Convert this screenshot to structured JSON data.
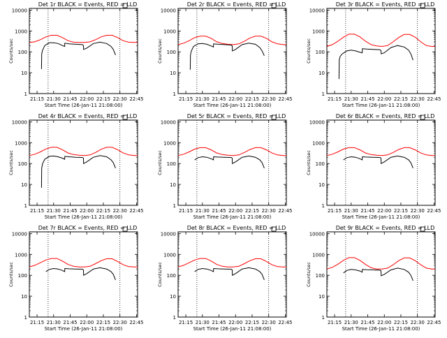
{
  "figure": {
    "ylabel": "Counts/sec",
    "xlabel": "Start Time (26-Jan-11 21:08:00)",
    "x_ticks": [
      "21:15",
      "21:30",
      "21:45",
      "22:00",
      "22:15",
      "22:30",
      "22:45"
    ],
    "y_ticks": [
      "1",
      "10",
      "100",
      "1000",
      "10000"
    ],
    "colors": {
      "events": "#000000",
      "lld": "#ff0000",
      "axes": "#000000"
    }
  },
  "chart_data": [
    {
      "type": "line",
      "title": "Det 1r BLACK = Events, RED = LLD",
      "y_scale": "log",
      "xlim": [
        "21:08",
        "22:46"
      ],
      "ylim": [
        1,
        12000
      ],
      "x_unit": "minutes from 21:08",
      "dotted_x": [
        "21:25",
        "22:30"
      ],
      "series": [
        {
          "role": "LLD",
          "color": "#ff0000",
          "x": [
            0,
            5,
            10,
            15,
            20,
            25,
            30,
            35,
            40,
            45,
            50,
            55,
            60,
            65,
            70,
            75,
            80,
            85,
            90,
            95,
            98
          ],
          "y": [
            280,
            300,
            380,
            520,
            620,
            620,
            480,
            340,
            290,
            280,
            280,
            300,
            380,
            520,
            620,
            620,
            480,
            340,
            290,
            280,
            280
          ]
        },
        {
          "role": "Events",
          "color": "#000000",
          "x": [
            11,
            11.2,
            12,
            14,
            18,
            22,
            26,
            30,
            32,
            32.1,
            36,
            42,
            48,
            49,
            49.1,
            52,
            58,
            64,
            70,
            74,
            76,
            78
          ],
          "y": [
            15,
            80,
            120,
            200,
            270,
            270,
            250,
            200,
            180,
            260,
            240,
            230,
            220,
            200,
            130,
            150,
            250,
            290,
            250,
            180,
            130,
            70
          ]
        }
      ]
    },
    {
      "type": "line",
      "title": "Det 2r BLACK = Events, RED = LLD",
      "y_scale": "log",
      "xlim": [
        "21:08",
        "22:46"
      ],
      "ylim": [
        1,
        12000
      ],
      "x_unit": "minutes from 21:08",
      "dotted_x": [
        "21:25",
        "22:30"
      ],
      "series": [
        {
          "role": "LLD",
          "color": "#ff0000",
          "x": [
            0,
            5,
            10,
            15,
            20,
            25,
            30,
            35,
            40,
            45,
            50,
            55,
            60,
            65,
            70,
            75,
            80,
            85,
            90,
            95,
            98
          ],
          "y": [
            220,
            260,
            340,
            480,
            560,
            560,
            440,
            300,
            250,
            230,
            220,
            240,
            320,
            460,
            560,
            560,
            440,
            300,
            240,
            220,
            220
          ]
        },
        {
          "role": "Events",
          "color": "#000000",
          "x": [
            11,
            11.2,
            12,
            14,
            18,
            22,
            26,
            30,
            32,
            32.1,
            36,
            42,
            48,
            49,
            49.1,
            52,
            58,
            64,
            70,
            74,
            76,
            78
          ],
          "y": [
            14,
            70,
            110,
            180,
            240,
            250,
            230,
            190,
            170,
            240,
            230,
            220,
            210,
            190,
            110,
            130,
            220,
            260,
            230,
            160,
            110,
            65
          ]
        }
      ]
    },
    {
      "type": "line",
      "title": "Det 3r BLACK = Events, RED = LLD",
      "y_scale": "log",
      "xlim": [
        "21:08",
        "22:46"
      ],
      "ylim": [
        1,
        12000
      ],
      "x_unit": "minutes from 21:08",
      "dotted_x": [
        "21:25",
        "22:30"
      ],
      "series": [
        {
          "role": "LLD",
          "color": "#ff0000",
          "x": [
            0,
            5,
            10,
            15,
            20,
            25,
            30,
            35,
            40,
            45,
            50,
            55,
            60,
            65,
            70,
            75,
            80,
            85,
            90,
            95,
            98
          ],
          "y": [
            180,
            220,
            320,
            500,
            700,
            700,
            520,
            320,
            220,
            190,
            180,
            200,
            300,
            480,
            680,
            680,
            500,
            300,
            200,
            180,
            180
          ]
        },
        {
          "role": "Events",
          "color": "#000000",
          "x": [
            11,
            11.2,
            12,
            14,
            18,
            22,
            26,
            30,
            32,
            32.1,
            36,
            42,
            48,
            49,
            49.1,
            52,
            58,
            64,
            70,
            74,
            76,
            78
          ],
          "y": [
            5,
            40,
            60,
            80,
            110,
            120,
            110,
            95,
            90,
            140,
            135,
            130,
            125,
            115,
            80,
            90,
            160,
            200,
            170,
            120,
            80,
            40
          ]
        }
      ]
    },
    {
      "type": "line",
      "title": "Det 4r BLACK = Events, RED = LLD",
      "y_scale": "log",
      "xlim": [
        "21:08",
        "22:46"
      ],
      "ylim": [
        1,
        12000
      ],
      "x_unit": "minutes from 21:08",
      "dotted_x": [
        "21:25",
        "22:30"
      ],
      "series": [
        {
          "role": "LLD",
          "color": "#ff0000",
          "x": [
            0,
            5,
            10,
            15,
            20,
            25,
            30,
            35,
            40,
            45,
            50,
            55,
            60,
            65,
            70,
            75,
            80,
            85,
            90,
            95,
            98
          ],
          "y": [
            240,
            280,
            360,
            500,
            600,
            600,
            460,
            320,
            270,
            250,
            240,
            260,
            340,
            480,
            600,
            600,
            460,
            320,
            260,
            240,
            240
          ]
        },
        {
          "role": "Events",
          "color": "#000000",
          "x": [
            11,
            11.2,
            12,
            14,
            18,
            22,
            26,
            30,
            32,
            32.1,
            36,
            42,
            48,
            49,
            49.1,
            52,
            58,
            64,
            70,
            74,
            76,
            78
          ],
          "y": [
            7,
            60,
            100,
            160,
            220,
            230,
            210,
            180,
            160,
            220,
            210,
            200,
            195,
            180,
            100,
            120,
            200,
            240,
            210,
            150,
            110,
            60
          ]
        }
      ]
    },
    {
      "type": "line",
      "title": "Det 5r BLACK = Events, RED = LLD",
      "y_scale": "log",
      "xlim": [
        "21:08",
        "22:46"
      ],
      "ylim": [
        1,
        12000
      ],
      "x_unit": "minutes from 21:08",
      "dotted_x": [
        "21:25",
        "22:30"
      ],
      "series": [
        {
          "role": "LLD",
          "color": "#ff0000",
          "x": [
            0,
            5,
            10,
            15,
            20,
            25,
            30,
            35,
            40,
            45,
            50,
            55,
            60,
            65,
            70,
            75,
            80,
            85,
            90,
            95,
            98
          ],
          "y": [
            240,
            280,
            360,
            490,
            580,
            580,
            450,
            320,
            270,
            250,
            240,
            260,
            340,
            470,
            580,
            580,
            450,
            320,
            260,
            240,
            240
          ]
        },
        {
          "role": "Events",
          "color": "#000000",
          "x": [
            15,
            18,
            22,
            26,
            30,
            32,
            32.1,
            36,
            42,
            48,
            49,
            49.1,
            52,
            58,
            64,
            70,
            74,
            76,
            78
          ],
          "y": [
            150,
            190,
            210,
            200,
            170,
            150,
            210,
            205,
            200,
            195,
            180,
            100,
            120,
            200,
            230,
            200,
            150,
            110,
            60
          ]
        }
      ]
    },
    {
      "type": "line",
      "title": "Det 6r BLACK = Events, RED = LLD",
      "y_scale": "log",
      "xlim": [
        "21:08",
        "22:46"
      ],
      "ylim": [
        1,
        12000
      ],
      "x_unit": "minutes from 21:08",
      "dotted_x": [
        "21:25",
        "22:30"
      ],
      "series": [
        {
          "role": "LLD",
          "color": "#ff0000",
          "x": [
            0,
            5,
            10,
            15,
            20,
            25,
            30,
            35,
            40,
            45,
            50,
            55,
            60,
            65,
            70,
            75,
            80,
            85,
            90,
            95,
            98
          ],
          "y": [
            240,
            280,
            360,
            490,
            580,
            580,
            450,
            320,
            270,
            250,
            240,
            260,
            340,
            470,
            580,
            580,
            450,
            320,
            260,
            240,
            240
          ]
        },
        {
          "role": "Events",
          "color": "#000000",
          "x": [
            15,
            18,
            22,
            26,
            30,
            32,
            32.1,
            36,
            42,
            48,
            49,
            49.1,
            52,
            58,
            64,
            70,
            74,
            76,
            78
          ],
          "y": [
            150,
            190,
            210,
            200,
            170,
            150,
            210,
            205,
            200,
            195,
            180,
            100,
            120,
            200,
            230,
            200,
            150,
            110,
            60
          ]
        }
      ]
    },
    {
      "type": "line",
      "title": "Det 7r BLACK = Events, RED = LLD",
      "y_scale": "log",
      "xlim": [
        "21:08",
        "22:46"
      ],
      "ylim": [
        1,
        12000
      ],
      "x_unit": "minutes from 21:08",
      "dotted_x": [
        "21:25",
        "22:30"
      ],
      "series": [
        {
          "role": "LLD",
          "color": "#ff0000",
          "x": [
            0,
            5,
            10,
            15,
            20,
            25,
            30,
            35,
            40,
            45,
            50,
            55,
            60,
            65,
            70,
            75,
            80,
            85,
            90,
            95,
            98
          ],
          "y": [
            250,
            300,
            400,
            540,
            640,
            640,
            480,
            330,
            270,
            250,
            250,
            270,
            360,
            500,
            620,
            620,
            460,
            320,
            260,
            250,
            250
          ]
        },
        {
          "role": "Events",
          "color": "#000000",
          "x": [
            15,
            18,
            22,
            26,
            30,
            32,
            32.1,
            36,
            42,
            48,
            49,
            49.1,
            52,
            58,
            64,
            70,
            74,
            76,
            78
          ],
          "y": [
            150,
            190,
            210,
            200,
            170,
            150,
            210,
            205,
            200,
            195,
            180,
            100,
            120,
            200,
            230,
            200,
            150,
            110,
            60
          ]
        }
      ]
    },
    {
      "type": "line",
      "title": "Det 8r BLACK = Events, RED = LLD",
      "y_scale": "log",
      "xlim": [
        "21:08",
        "22:46"
      ],
      "ylim": [
        1,
        12000
      ],
      "x_unit": "minutes from 21:08",
      "dotted_x": [
        "21:25",
        "22:30"
      ],
      "series": [
        {
          "role": "LLD",
          "color": "#ff0000",
          "x": [
            0,
            5,
            10,
            15,
            20,
            25,
            30,
            35,
            40,
            45,
            50,
            55,
            60,
            65,
            70,
            75,
            80,
            85,
            90,
            95,
            98
          ],
          "y": [
            250,
            300,
            400,
            540,
            640,
            640,
            480,
            330,
            270,
            250,
            250,
            270,
            360,
            500,
            620,
            620,
            460,
            320,
            260,
            250,
            250
          ]
        },
        {
          "role": "Events",
          "color": "#000000",
          "x": [
            15,
            18,
            22,
            26,
            30,
            32,
            32.1,
            36,
            42,
            48,
            49,
            49.1,
            52,
            58,
            64,
            70,
            74,
            76,
            78
          ],
          "y": [
            150,
            190,
            210,
            200,
            170,
            150,
            210,
            205,
            200,
            195,
            180,
            100,
            120,
            200,
            230,
            200,
            150,
            110,
            60
          ]
        }
      ]
    },
    {
      "type": "line",
      "title": "Det 9r BLACK = Events, RED = LLD",
      "y_scale": "log",
      "xlim": [
        "21:08",
        "22:46"
      ],
      "ylim": [
        1,
        12000
      ],
      "x_unit": "minutes from 21:08",
      "dotted_x": [
        "21:25",
        "22:30"
      ],
      "series": [
        {
          "role": "LLD",
          "color": "#ff0000",
          "x": [
            0,
            5,
            10,
            15,
            20,
            25,
            30,
            35,
            40,
            45,
            50,
            55,
            60,
            65,
            70,
            75,
            80,
            85,
            90,
            95,
            98
          ],
          "y": [
            200,
            240,
            340,
            520,
            700,
            700,
            520,
            330,
            230,
            200,
            200,
            220,
            320,
            500,
            680,
            680,
            500,
            320,
            220,
            200,
            200
          ]
        },
        {
          "role": "Events",
          "color": "#000000",
          "x": [
            15,
            18,
            22,
            26,
            30,
            32,
            32.1,
            36,
            42,
            48,
            49,
            49.1,
            52,
            58,
            64,
            70,
            74,
            76,
            78
          ],
          "y": [
            130,
            170,
            190,
            180,
            160,
            140,
            190,
            185,
            180,
            175,
            165,
            95,
            110,
            180,
            220,
            190,
            140,
            100,
            55
          ]
        }
      ]
    }
  ]
}
